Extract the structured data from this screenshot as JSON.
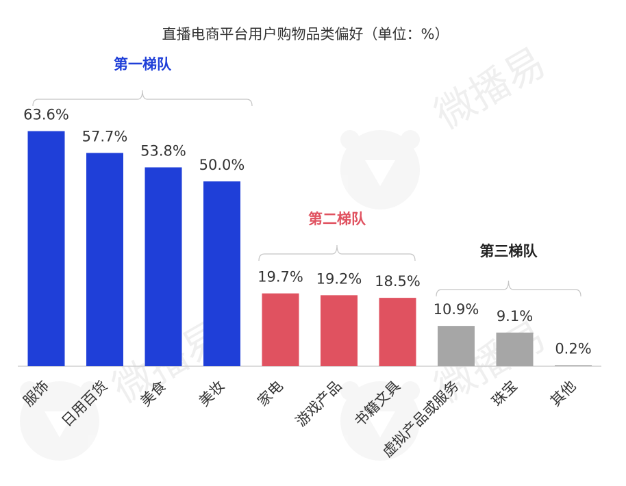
{
  "chart_data": {
    "type": "bar",
    "title": "直播电商平台用户购物品类偏好（单位：%）",
    "categories": [
      "服饰",
      "日用百货",
      "美食",
      "美妆",
      "家电",
      "游戏产品",
      "书籍文具",
      "虚拟产品或服务",
      "珠宝",
      "其他"
    ],
    "values": [
      63.6,
      57.7,
      53.8,
      50.0,
      19.7,
      19.2,
      18.5,
      10.9,
      9.1,
      0.2
    ],
    "value_labels": [
      "63.6%",
      "57.7%",
      "53.8%",
      "50.0%",
      "19.7%",
      "19.2%",
      "18.5%",
      "10.9%",
      "9.1%",
      "0.2%"
    ],
    "tiers": [
      {
        "label": "第一梯队",
        "start": 0,
        "end": 3,
        "color": "#1f3fd8"
      },
      {
        "label": "第二梯队",
        "start": 4,
        "end": 6,
        "color": "#e05260"
      },
      {
        "label": "第三梯队",
        "start": 7,
        "end": 9,
        "color": "#222222"
      }
    ],
    "bar_colors": [
      "#1f3fd8",
      "#1f3fd8",
      "#1f3fd8",
      "#1f3fd8",
      "#e05260",
      "#e05260",
      "#e05260",
      "#a6a6a6",
      "#a6a6a6",
      "#a6a6a6"
    ],
    "ylim": [
      0,
      70
    ],
    "grid": false,
    "legend": "none",
    "xlabel": "",
    "ylabel": ""
  },
  "watermark": "微播易"
}
